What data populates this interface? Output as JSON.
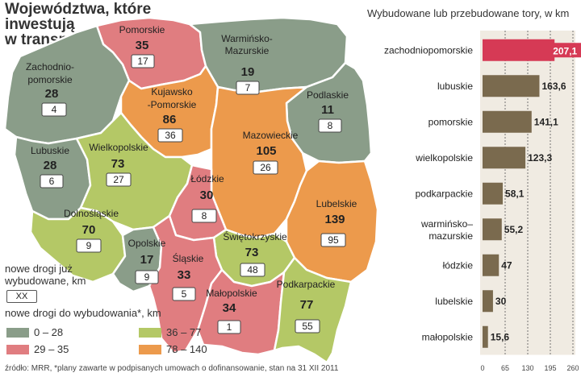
{
  "header": {
    "title_lines": [
      "Województwa, które",
      "inwestują",
      "w transport"
    ]
  },
  "legend": {
    "built_label": "nowe drogi już wybudowane, km",
    "sample": "XX",
    "planned_label": "nowe drogi do wybudowania*, km",
    "ranges": [
      {
        "label": "0 – 28",
        "color": "#8a9d89"
      },
      {
        "label": "29 – 35",
        "color": "#e07d80"
      },
      {
        "label": "36 – 77",
        "color": "#b4c866"
      },
      {
        "label": "78 – 140",
        "color": "#ec9a4c"
      }
    ]
  },
  "map": {
    "regions": [
      {
        "name": "Pomorskie",
        "built": "35",
        "planned": "17",
        "color": "#e07d80"
      },
      {
        "name": "Warmińsko-Mazurskie",
        "built": "19",
        "planned": "7",
        "color": "#8a9d89"
      },
      {
        "name": "Zachodnio-pomorskie",
        "built": "28",
        "planned": "4",
        "color": "#8a9d89"
      },
      {
        "name": "Kujawsko-Pomorskie",
        "built": "86",
        "planned": "36",
        "color": "#ec9a4c"
      },
      {
        "name": "Podlaskie",
        "built": "11",
        "planned": "8",
        "color": "#8a9d89"
      },
      {
        "name": "Lubuskie",
        "built": "28",
        "planned": "6",
        "color": "#8a9d89"
      },
      {
        "name": "Wielkopolskie",
        "built": "73",
        "planned": "27",
        "color": "#b4c866"
      },
      {
        "name": "Mazowieckie",
        "built": "105",
        "planned": "26",
        "color": "#ec9a4c"
      },
      {
        "name": "Łódzkie",
        "built": "30",
        "planned": "8",
        "color": "#e07d80"
      },
      {
        "name": "Lubelskie",
        "built": "139",
        "planned": "95",
        "color": "#ec9a4c"
      },
      {
        "name": "Dolnośląskie",
        "built": "70",
        "planned": "9",
        "color": "#b4c866"
      },
      {
        "name": "Opolskie",
        "built": "17",
        "planned": "9",
        "color": "#8a9d89"
      },
      {
        "name": "Świętokrzyskie",
        "built": "73",
        "planned": "48",
        "color": "#b4c866"
      },
      {
        "name": "Śląskie",
        "built": "33",
        "planned": "5",
        "color": "#e07d80"
      },
      {
        "name": "Małopolskie",
        "built": "34",
        "planned": "1",
        "color": "#e07d80"
      },
      {
        "name": "Podkarpackie",
        "built": "77",
        "planned": "55",
        "color": "#b4c866"
      }
    ]
  },
  "chart_data": {
    "type": "bar",
    "orientation": "horizontal",
    "title": "Wybudowane lub przebudowane tory, w km",
    "categories": [
      "zachodniopomorskie",
      "lubuskie",
      "pomorskie",
      "wielkopolskie",
      "podkarpackie",
      "warmińsko–mazurskie",
      "łódzkie",
      "lubelskie",
      "małopolskie"
    ],
    "values": [
      207.1,
      163.6,
      141.1,
      123.3,
      58.1,
      55.2,
      47,
      30,
      15.6
    ],
    "value_labels": [
      "207,1",
      "163,6",
      "141,1",
      "123,3",
      "58,1",
      "55,2",
      "47",
      "30",
      "15,6"
    ],
    "xticks": [
      "0",
      "65",
      "130",
      "195",
      "260"
    ],
    "xlim": [
      0,
      260
    ],
    "grid": true,
    "colors": {
      "highlight": "#d63a55",
      "bar": "#7a6a4e",
      "panel": "#f0ebe2"
    }
  },
  "footer": {
    "source": "źródło: MRR, *plany zawarte w podpisanych umowach o dofinansowanie, stan na 31 XII 2011"
  }
}
